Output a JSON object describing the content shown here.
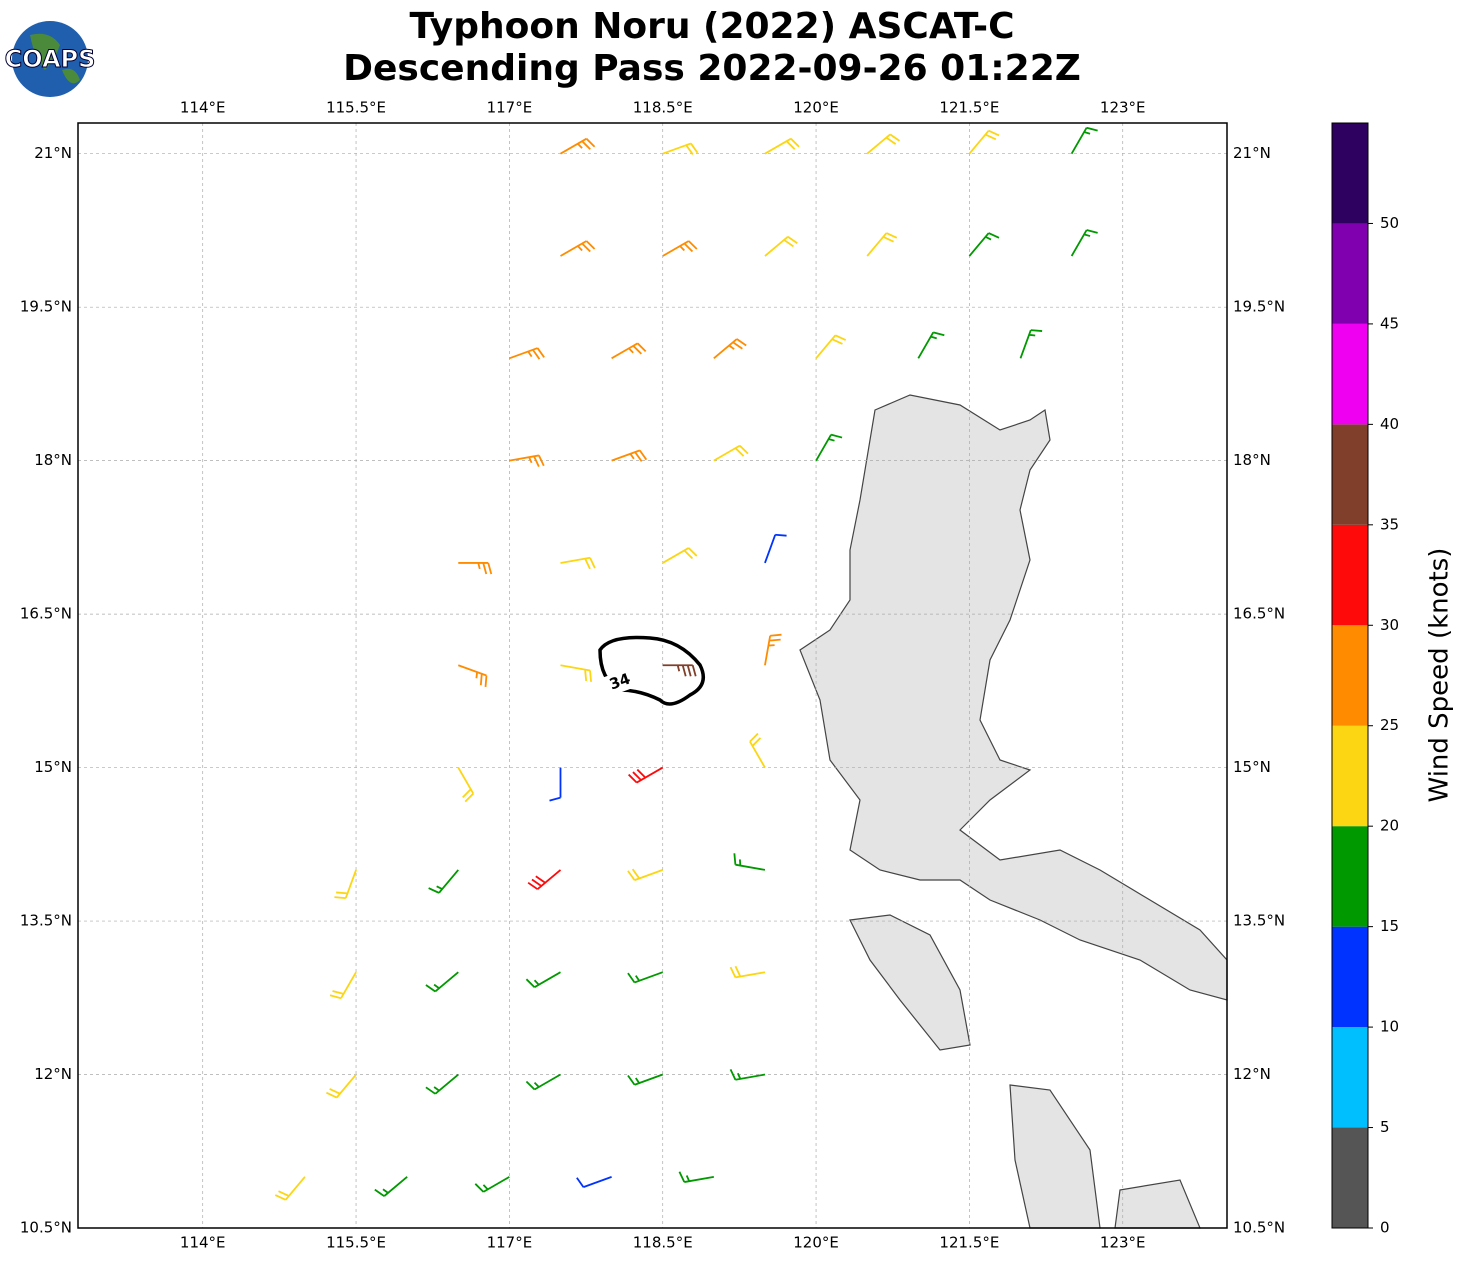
{
  "chart_data": {
    "type": "barbs",
    "title": "Typhoon Noru (2022) ASCAT-C",
    "subtitle": "Descending Pass 2022-09-26 01:22Z",
    "logo": "COAPS",
    "xlim": [
      112.78,
      124.02
    ],
    "ylim": [
      10.5,
      21.3
    ],
    "xticks": [
      {
        "value": 114,
        "label": "114°E"
      },
      {
        "value": 115.5,
        "label": "115.5°E"
      },
      {
        "value": 117,
        "label": "117°E"
      },
      {
        "value": 118.5,
        "label": "118.5°E"
      },
      {
        "value": 120,
        "label": "120°E"
      },
      {
        "value": 121.5,
        "label": "121.5°E"
      },
      {
        "value": 123,
        "label": "123°E"
      }
    ],
    "yticks": [
      {
        "value": 10.5,
        "label": "10.5°N"
      },
      {
        "value": 12,
        "label": "12°N"
      },
      {
        "value": 13.5,
        "label": "13.5°N"
      },
      {
        "value": 15,
        "label": "15°N"
      },
      {
        "value": 16.5,
        "label": "16.5°N"
      },
      {
        "value": 18,
        "label": "18°N"
      },
      {
        "value": 19.5,
        "label": "19.5°N"
      },
      {
        "value": 21,
        "label": "21°N"
      }
    ],
    "grid": true,
    "contour_level": 34,
    "colorbar": {
      "label": "Wind Speed (knots)",
      "lim": [
        0,
        55
      ],
      "ticks": [
        0,
        5,
        10,
        15,
        20,
        25,
        30,
        35,
        40,
        45,
        50
      ],
      "colors": [
        "#555555",
        "#00bfff",
        "#0033ff",
        "#009900",
        "#fcd612",
        "#ff8c00",
        "#ff0a0a",
        "#7f3f2b",
        "#f000f0",
        "#8000b0",
        "#2e0060"
      ]
    },
    "barbs": [
      {
        "lon": 117.5,
        "lat": 21,
        "speed": 27,
        "dir": 60
      },
      {
        "lon": 118.5,
        "lat": 21,
        "speed": 22,
        "dir": 70
      },
      {
        "lon": 119.5,
        "lat": 21,
        "speed": 22,
        "dir": 60
      },
      {
        "lon": 120.5,
        "lat": 21,
        "speed": 22,
        "dir": 50
      },
      {
        "lon": 121.5,
        "lat": 21,
        "speed": 22,
        "dir": 40
      },
      {
        "lon": 122.5,
        "lat": 21,
        "speed": 17,
        "dir": 30
      },
      {
        "lon": 117.5,
        "lat": 20,
        "speed": 27,
        "dir": 60
      },
      {
        "lon": 118.5,
        "lat": 20,
        "speed": 27,
        "dir": 60
      },
      {
        "lon": 119.5,
        "lat": 20,
        "speed": 22,
        "dir": 50
      },
      {
        "lon": 120.5,
        "lat": 20,
        "speed": 22,
        "dir": 40
      },
      {
        "lon": 121.5,
        "lat": 20,
        "speed": 17,
        "dir": 40
      },
      {
        "lon": 122.5,
        "lat": 20,
        "speed": 17,
        "dir": 30
      },
      {
        "lon": 117,
        "lat": 19,
        "speed": 27,
        "dir": 70
      },
      {
        "lon": 118,
        "lat": 19,
        "speed": 27,
        "dir": 60
      },
      {
        "lon": 119,
        "lat": 19,
        "speed": 27,
        "dir": 50
      },
      {
        "lon": 120,
        "lat": 19,
        "speed": 22,
        "dir": 40
      },
      {
        "lon": 121,
        "lat": 19,
        "speed": 17,
        "dir": 30
      },
      {
        "lon": 122,
        "lat": 19,
        "speed": 17,
        "dir": 20
      },
      {
        "lon": 117,
        "lat": 18,
        "speed": 27,
        "dir": 80
      },
      {
        "lon": 118,
        "lat": 18,
        "speed": 27,
        "dir": 70
      },
      {
        "lon": 119,
        "lat": 18,
        "speed": 22,
        "dir": 60
      },
      {
        "lon": 120,
        "lat": 18,
        "speed": 17,
        "dir": 30
      },
      {
        "lon": 116.5,
        "lat": 17,
        "speed": 27,
        "dir": 90
      },
      {
        "lon": 117.5,
        "lat": 17,
        "speed": 22,
        "dir": 80
      },
      {
        "lon": 118.5,
        "lat": 17,
        "speed": 22,
        "dir": 60
      },
      {
        "lon": 119.5,
        "lat": 17,
        "speed": 12,
        "dir": 20
      },
      {
        "lon": 116.5,
        "lat": 16,
        "speed": 27,
        "dir": 110
      },
      {
        "lon": 117.5,
        "lat": 16,
        "speed": 22,
        "dir": 100
      },
      {
        "lon": 118.5,
        "lat": 16,
        "speed": 37,
        "dir": 90
      },
      {
        "lon": 119.5,
        "lat": 16,
        "speed": 27,
        "dir": 10
      },
      {
        "lon": 116.5,
        "lat": 15,
        "speed": 22,
        "dir": 150
      },
      {
        "lon": 117.5,
        "lat": 15,
        "speed": 12,
        "dir": 180
      },
      {
        "lon": 118.5,
        "lat": 15,
        "speed": 32,
        "dir": 240
      },
      {
        "lon": 119.5,
        "lat": 15,
        "speed": 22,
        "dir": 330
      },
      {
        "lon": 115.5,
        "lat": 14,
        "speed": 22,
        "dir": 200
      },
      {
        "lon": 116.5,
        "lat": 14,
        "speed": 17,
        "dir": 220
      },
      {
        "lon": 117.5,
        "lat": 14,
        "speed": 32,
        "dir": 230
      },
      {
        "lon": 118.5,
        "lat": 14,
        "speed": 22,
        "dir": 250
      },
      {
        "lon": 119.5,
        "lat": 14,
        "speed": 17,
        "dir": 280
      },
      {
        "lon": 115.5,
        "lat": 13,
        "speed": 22,
        "dir": 210
      },
      {
        "lon": 116.5,
        "lat": 13,
        "speed": 17,
        "dir": 230
      },
      {
        "lon": 117.5,
        "lat": 13,
        "speed": 17,
        "dir": 240
      },
      {
        "lon": 118.5,
        "lat": 13,
        "speed": 17,
        "dir": 250
      },
      {
        "lon": 119.5,
        "lat": 13,
        "speed": 22,
        "dir": 260
      },
      {
        "lon": 115.5,
        "lat": 12,
        "speed": 22,
        "dir": 220
      },
      {
        "lon": 116.5,
        "lat": 12,
        "speed": 17,
        "dir": 230
      },
      {
        "lon": 117.5,
        "lat": 12,
        "speed": 17,
        "dir": 240
      },
      {
        "lon": 118.5,
        "lat": 12,
        "speed": 17,
        "dir": 250
      },
      {
        "lon": 119.5,
        "lat": 12,
        "speed": 17,
        "dir": 260
      },
      {
        "lon": 115,
        "lat": 11,
        "speed": 22,
        "dir": 220
      },
      {
        "lon": 116,
        "lat": 11,
        "speed": 17,
        "dir": 230
      },
      {
        "lon": 117,
        "lat": 11,
        "speed": 17,
        "dir": 240
      },
      {
        "lon": 118,
        "lat": 11,
        "speed": 12,
        "dir": 250
      },
      {
        "lon": 119,
        "lat": 11,
        "speed": 17,
        "dir": 260
      }
    ]
  }
}
